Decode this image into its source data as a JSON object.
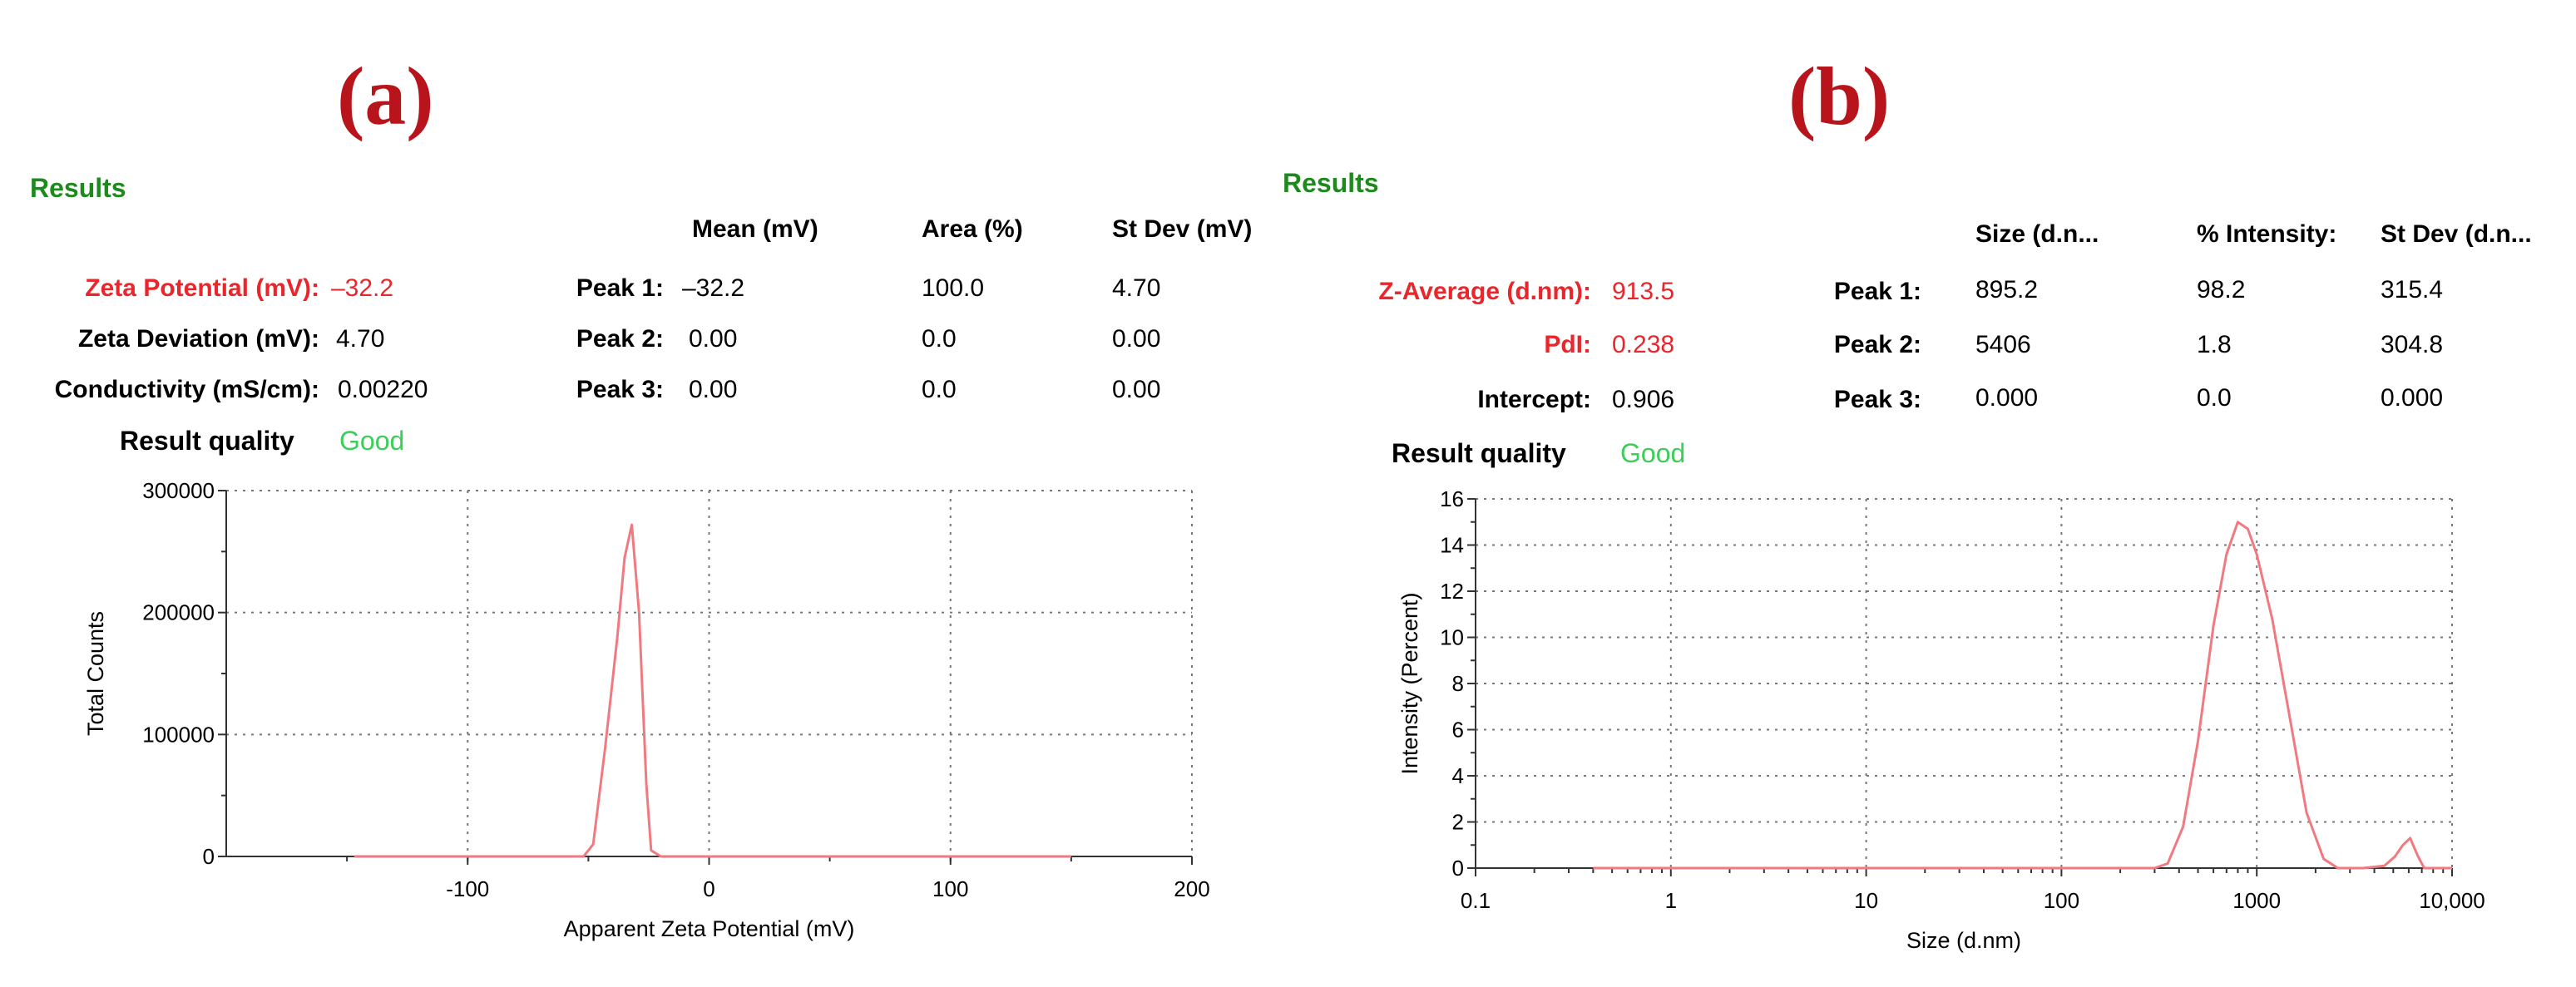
{
  "panels": {
    "a": {
      "label": "(a)",
      "results_heading": "Results",
      "columns": [
        "Mean (mV)",
        "Area (%)",
        "St Dev (mV)"
      ],
      "metrics": [
        {
          "label": "Zeta Potential (mV):",
          "value": "–32.2",
          "highlight": true
        },
        {
          "label": "Zeta Deviation (mV):",
          "value": "4.70",
          "highlight": false
        },
        {
          "label": "Conductivity (mS/cm):",
          "value": "0.00220",
          "highlight": false
        }
      ],
      "peaks": [
        {
          "label": "Peak 1:",
          "values": [
            "–32.2",
            "100.0",
            "4.70"
          ]
        },
        {
          "label": "Peak 2:",
          "values": [
            "0.00",
            "0.0",
            "0.00"
          ]
        },
        {
          "label": "Peak 3:",
          "values": [
            "0.00",
            "0.0",
            "0.00"
          ]
        }
      ],
      "quality_label": "Result quality",
      "quality_value": "Good"
    },
    "b": {
      "label": "(b)",
      "results_heading": "Results",
      "columns": [
        "Size (d.n...",
        "% Intensity:",
        "St Dev (d.n..."
      ],
      "metrics": [
        {
          "label": "Z-Average (d.nm):",
          "value": "913.5",
          "highlight": true
        },
        {
          "label": "PdI:",
          "value": "0.238",
          "highlight": true
        },
        {
          "label": "Intercept:",
          "value": "0.906",
          "highlight": false
        }
      ],
      "peaks": [
        {
          "label": "Peak 1:",
          "values": [
            "895.2",
            "98.2",
            "315.4"
          ]
        },
        {
          "label": "Peak 2:",
          "values": [
            "5406",
            "1.8",
            "304.8"
          ]
        },
        {
          "label": "Peak 3:",
          "values": [
            "0.000",
            "0.0",
            "0.000"
          ]
        }
      ],
      "quality_label": "Result quality",
      "quality_value": "Good"
    }
  },
  "colors": {
    "curve": "#f07a80",
    "heading_green": "#1e8a1e",
    "good_green": "#3ccd5a",
    "highlight_red": "#e8262c",
    "label_red": "#b8141c"
  },
  "chart_data": [
    {
      "type": "line",
      "title": "",
      "xlabel": "Apparent Zeta Potential (mV)",
      "ylabel": "Total Counts",
      "xlim": [
        -200,
        200
      ],
      "ylim": [
        0,
        300000
      ],
      "x_ticks": [
        -100,
        0,
        100,
        200
      ],
      "x_tick_labels": [
        "-100",
        "0",
        "100",
        "200"
      ],
      "y_ticks": [
        0,
        100000,
        200000,
        300000
      ],
      "y_tick_labels": [
        "0",
        "100000",
        "200000",
        "300000"
      ],
      "grid": true,
      "series": [
        {
          "x": [
            -147,
            -52,
            -48,
            -43,
            -38,
            -35,
            -32,
            -29,
            -26,
            -24,
            -20,
            150
          ],
          "y": [
            0,
            0,
            10000,
            90000,
            180000,
            245000,
            272000,
            200000,
            60000,
            5000,
            0,
            0
          ]
        }
      ]
    },
    {
      "type": "line",
      "title": "",
      "xlabel": "Size (d.nm)",
      "ylabel": "Intensity (Percent)",
      "xscale": "log",
      "xlim": [
        0.1,
        10000
      ],
      "ylim": [
        0,
        16
      ],
      "x_ticks": [
        0.1,
        1,
        10,
        100,
        1000,
        10000
      ],
      "x_tick_labels": [
        "0.1",
        "1",
        "10",
        "100",
        "1000",
        "10,000"
      ],
      "y_ticks": [
        0,
        2,
        4,
        6,
        8,
        10,
        12,
        14,
        16
      ],
      "y_tick_labels": [
        "0",
        "2",
        "4",
        "6",
        "8",
        "10",
        "12",
        "14",
        "16"
      ],
      "grid": true,
      "series": [
        {
          "x": [
            0.4,
            300,
            350,
            420,
            500,
            600,
            700,
            800,
            900,
            1000,
            1200,
            1500,
            1800,
            2200,
            2600,
            3500,
            4500,
            5100,
            5600,
            6100,
            6700,
            7200,
            10000
          ],
          "y": [
            0,
            0,
            0.2,
            1.8,
            5.5,
            10.5,
            13.6,
            15.0,
            14.7,
            13.6,
            10.8,
            6.2,
            2.4,
            0.4,
            0,
            0,
            0.1,
            0.5,
            1.0,
            1.3,
            0.5,
            0,
            0
          ]
        }
      ]
    }
  ]
}
